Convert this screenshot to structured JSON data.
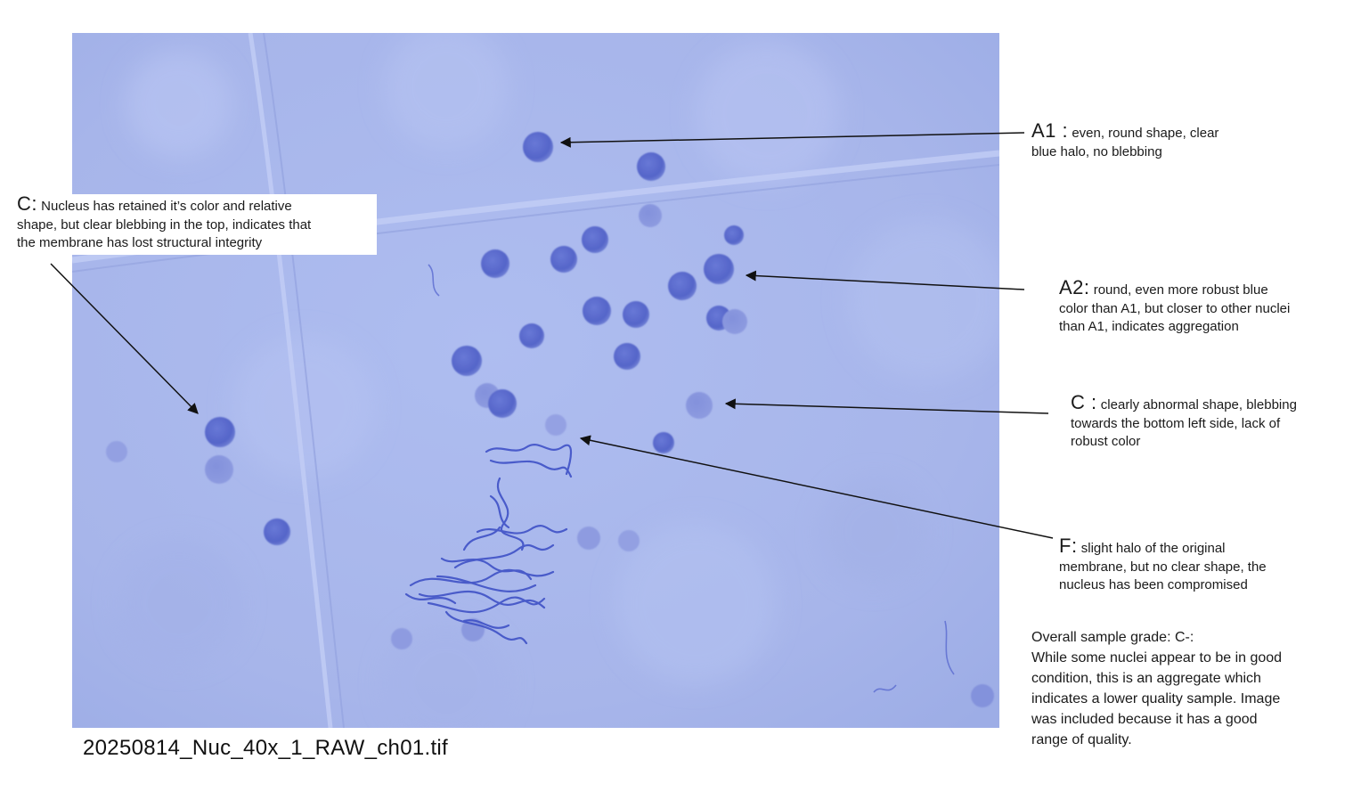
{
  "image": {
    "filename": "20250814_Nuc_40x_1_RAW_ch01.tif",
    "background_color": "#a9b7ec",
    "nucleus_color": "#5b6bcf",
    "debris_color": "#3d4fc4"
  },
  "annotations": [
    {
      "id": "a1",
      "grade": "A1 :",
      "text": "even, round shape, clear",
      "text2": "blue halo, no blebbing"
    },
    {
      "id": "a2",
      "grade": "A2:",
      "text": "round, even more robust blue",
      "text2": "color than A1, but closer to other nuclei",
      "text3": "than A1, indicates aggregation"
    },
    {
      "id": "c-right",
      "grade": "C :",
      "text": "clearly abnormal shape, blebbing",
      "text2": "towards the bottom left side, lack of",
      "text3": "robust color"
    },
    {
      "id": "f",
      "grade": "F:",
      "text": "slight halo of the original",
      "text2": "membrane, but no clear shape, the",
      "text3": "nucleus has been compromised"
    },
    {
      "id": "c-left",
      "grade": "C:",
      "text": "Nucleus has retained it’s color and relative",
      "text2": "shape, but clear blebbing in the top, indicates that",
      "text3": "the membrane has lost structural integrity"
    }
  ],
  "summary": {
    "title": "Overall sample grade: C-:",
    "lines": [
      "While some nuclei appear to be in good",
      "condition, this is an aggregate which",
      "indicates a lower quality sample. Image",
      "was included because it has a good",
      "range of quality."
    ]
  }
}
